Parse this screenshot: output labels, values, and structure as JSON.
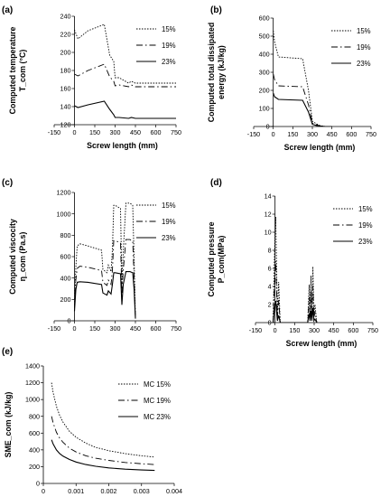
{
  "chart_data": [
    {
      "type": "line",
      "panel_label": "(a)",
      "ylabel_lines": [
        "Computed temperature",
        "T_com (°C)"
      ],
      "xlabel": "Screw length (mm)",
      "xlim": [
        -150,
        750
      ],
      "xticks": [
        -150,
        0,
        150,
        300,
        450,
        600,
        750
      ],
      "ylim": [
        120,
        240
      ],
      "yticks": [
        120,
        140,
        160,
        180,
        200,
        220,
        240
      ],
      "legend_position": "right",
      "series": [
        {
          "name": "15%",
          "style": "dotted",
          "x": [
            0,
            25,
            100,
            220,
            260,
            290,
            300,
            330,
            400,
            420,
            450,
            750
          ],
          "y": [
            225,
            215,
            224,
            231,
            197,
            190,
            172,
            172,
            166,
            168,
            166,
            166
          ]
        },
        {
          "name": "19%",
          "style": "dashdot",
          "x": [
            0,
            25,
            100,
            220,
            260,
            290,
            300,
            330,
            400,
            420,
            450,
            750
          ],
          "y": [
            176,
            174,
            180,
            187,
            173,
            168,
            163,
            164,
            162,
            164,
            162,
            162
          ]
        },
        {
          "name": "23%",
          "style": "solid",
          "x": [
            0,
            25,
            100,
            220,
            260,
            290,
            300,
            330,
            400,
            420,
            450,
            750
          ],
          "y": [
            141,
            139,
            142,
            146,
            137,
            131,
            128,
            128,
            127,
            128,
            127,
            127
          ]
        }
      ]
    },
    {
      "type": "line",
      "panel_label": "(b)",
      "ylabel_lines": [
        "Computed total dissipated",
        "energy (kJ/kg)"
      ],
      "xlabel": "Screw length (mm)",
      "xlim": [
        -150,
        750
      ],
      "xticks": [
        -150,
        0,
        150,
        300,
        450,
        600,
        750
      ],
      "ylim": [
        0,
        600
      ],
      "yticks": [
        0,
        100,
        200,
        300,
        400,
        500,
        600
      ],
      "legend_position": "right",
      "series": [
        {
          "name": "15%",
          "style": "dotted",
          "x": [
            0,
            10,
            40,
            225,
            270,
            300,
            330,
            360,
            400,
            450
          ],
          "y": [
            530,
            470,
            385,
            375,
            200,
            30,
            15,
            5,
            0,
            0
          ]
        },
        {
          "name": "19%",
          "style": "dashdot",
          "x": [
            0,
            10,
            40,
            225,
            270,
            300,
            330,
            360,
            400,
            450
          ],
          "y": [
            290,
            260,
            225,
            220,
            120,
            20,
            10,
            3,
            0,
            0
          ]
        },
        {
          "name": "23%",
          "style": "solid",
          "x": [
            0,
            10,
            40,
            225,
            270,
            300,
            330,
            360,
            400,
            450
          ],
          "y": [
            185,
            165,
            150,
            145,
            80,
            12,
            6,
            2,
            0,
            0
          ]
        }
      ]
    },
    {
      "type": "line",
      "panel_label": "(c)",
      "ylabel_lines": [
        "Computed viscocity",
        "η_com (Pa.s)"
      ],
      "xlabel": "",
      "xlim": [
        -150,
        750
      ],
      "xticks": [
        -150,
        0,
        150,
        300,
        450,
        600,
        750
      ],
      "ylim": [
        0,
        1200
      ],
      "yticks": [
        0,
        200,
        400,
        600,
        800,
        1000,
        1200
      ],
      "legend_position": "right",
      "series": [
        {
          "name": "15%",
          "style": "dotted",
          "x": [
            0,
            10,
            20,
            40,
            100,
            200,
            210,
            240,
            250,
            270,
            280,
            290,
            300,
            340,
            350,
            360,
            380,
            400,
            410,
            420,
            430,
            440,
            450
          ],
          "y": [
            150,
            500,
            700,
            720,
            700,
            660,
            480,
            450,
            520,
            460,
            660,
            1080,
            1080,
            1050,
            350,
            650,
            1100,
            1100,
            1100,
            1090,
            1080,
            600,
            40
          ]
        },
        {
          "name": "19%",
          "style": "dashdot",
          "x": [
            0,
            10,
            20,
            40,
            100,
            200,
            210,
            240,
            250,
            270,
            280,
            290,
            300,
            340,
            350,
            360,
            380,
            400,
            410,
            420,
            430,
            440,
            450
          ],
          "y": [
            120,
            380,
            490,
            510,
            500,
            470,
            360,
            330,
            380,
            340,
            470,
            750,
            750,
            730,
            250,
            470,
            760,
            760,
            760,
            750,
            745,
            420,
            30
          ]
        },
        {
          "name": "23%",
          "style": "solid",
          "x": [
            0,
            10,
            20,
            40,
            100,
            200,
            210,
            240,
            250,
            270,
            280,
            290,
            300,
            340,
            350,
            360,
            380,
            400,
            410,
            420,
            430,
            440,
            450
          ],
          "y": [
            90,
            290,
            360,
            365,
            360,
            340,
            260,
            240,
            280,
            250,
            340,
            450,
            450,
            440,
            150,
            340,
            460,
            460,
            460,
            455,
            450,
            300,
            20
          ]
        }
      ]
    },
    {
      "type": "line",
      "panel_label": "(d)",
      "ylabel_lines": [
        "Computed pressure",
        "P_com(MPa)"
      ],
      "xlabel": "Screw length (mm)",
      "xlim": [
        -150,
        750
      ],
      "xticks": [
        -150,
        0,
        150,
        300,
        450,
        600,
        750
      ],
      "ylim": [
        0,
        14
      ],
      "yticks": [
        0,
        2,
        4,
        6,
        8,
        10,
        12,
        14
      ],
      "legend_position": "right",
      "series": [
        {
          "name": "15%",
          "style": "dotted",
          "x": [
            -15,
            -5,
            5,
            12,
            18,
            28,
            40,
            250,
            262,
            268,
            275,
            282,
            290,
            298,
            306,
            320
          ],
          "y": [
            0,
            7,
            11.7,
            6,
            1,
            4.5,
            0,
            0,
            4.2,
            0.5,
            5.2,
            1,
            6.2,
            0.8,
            2,
            0
          ]
        },
        {
          "name": "19%",
          "style": "dashdot",
          "x": [
            -15,
            -5,
            5,
            12,
            18,
            28,
            40,
            250,
            262,
            268,
            275,
            282,
            290,
            298,
            306,
            320
          ],
          "y": [
            0,
            4,
            6.8,
            3.5,
            0.5,
            2.5,
            0,
            0,
            2.8,
            0.4,
            3.5,
            0.6,
            4.1,
            0.5,
            1.2,
            0
          ]
        },
        {
          "name": "23%",
          "style": "solid",
          "x": [
            -15,
            -5,
            5,
            12,
            18,
            28,
            40,
            250,
            262,
            268,
            275,
            282,
            290,
            298,
            306,
            320
          ],
          "y": [
            0,
            1.5,
            2.4,
            1.2,
            0.2,
            0.8,
            0,
            0,
            1,
            0.2,
            1.3,
            0.2,
            1.6,
            0.2,
            0.4,
            0
          ]
        }
      ]
    },
    {
      "type": "line",
      "panel_label": "(e)",
      "ylabel_lines": [
        "SME_com (kJ/kg)"
      ],
      "xlabel": "Q/N (kg/min/rpm)",
      "xlim": [
        0,
        0.004
      ],
      "xticks": [
        0,
        0.001,
        0.002,
        0.003,
        0.004
      ],
      "ylim": [
        0,
        1400
      ],
      "yticks": [
        0,
        200,
        400,
        600,
        800,
        1000,
        1200,
        1400
      ],
      "legend_position": "right",
      "series": [
        {
          "name": "MC 15%",
          "style": "dotted",
          "x": [
            0.00025,
            0.0003,
            0.0004,
            0.0005,
            0.0006,
            0.0008,
            0.001,
            0.0013,
            0.0016,
            0.002,
            0.0025,
            0.003,
            0.0034
          ],
          "y": [
            1200,
            1080,
            920,
            810,
            730,
            620,
            550,
            480,
            430,
            390,
            355,
            330,
            315
          ]
        },
        {
          "name": "MC 19%",
          "style": "dashdot",
          "x": [
            0.00025,
            0.0003,
            0.0004,
            0.0005,
            0.0006,
            0.0008,
            0.001,
            0.0013,
            0.0016,
            0.002,
            0.0025,
            0.003,
            0.0034
          ],
          "y": [
            800,
            720,
            610,
            540,
            490,
            420,
            375,
            330,
            300,
            275,
            250,
            235,
            225
          ]
        },
        {
          "name": "MC 23%",
          "style": "solid",
          "x": [
            0.00025,
            0.0003,
            0.0004,
            0.0005,
            0.0006,
            0.0008,
            0.001,
            0.0013,
            0.0016,
            0.002,
            0.0025,
            0.003,
            0.0034
          ],
          "y": [
            520,
            470,
            400,
            355,
            325,
            285,
            255,
            225,
            205,
            185,
            170,
            160,
            155
          ]
        }
      ]
    }
  ]
}
